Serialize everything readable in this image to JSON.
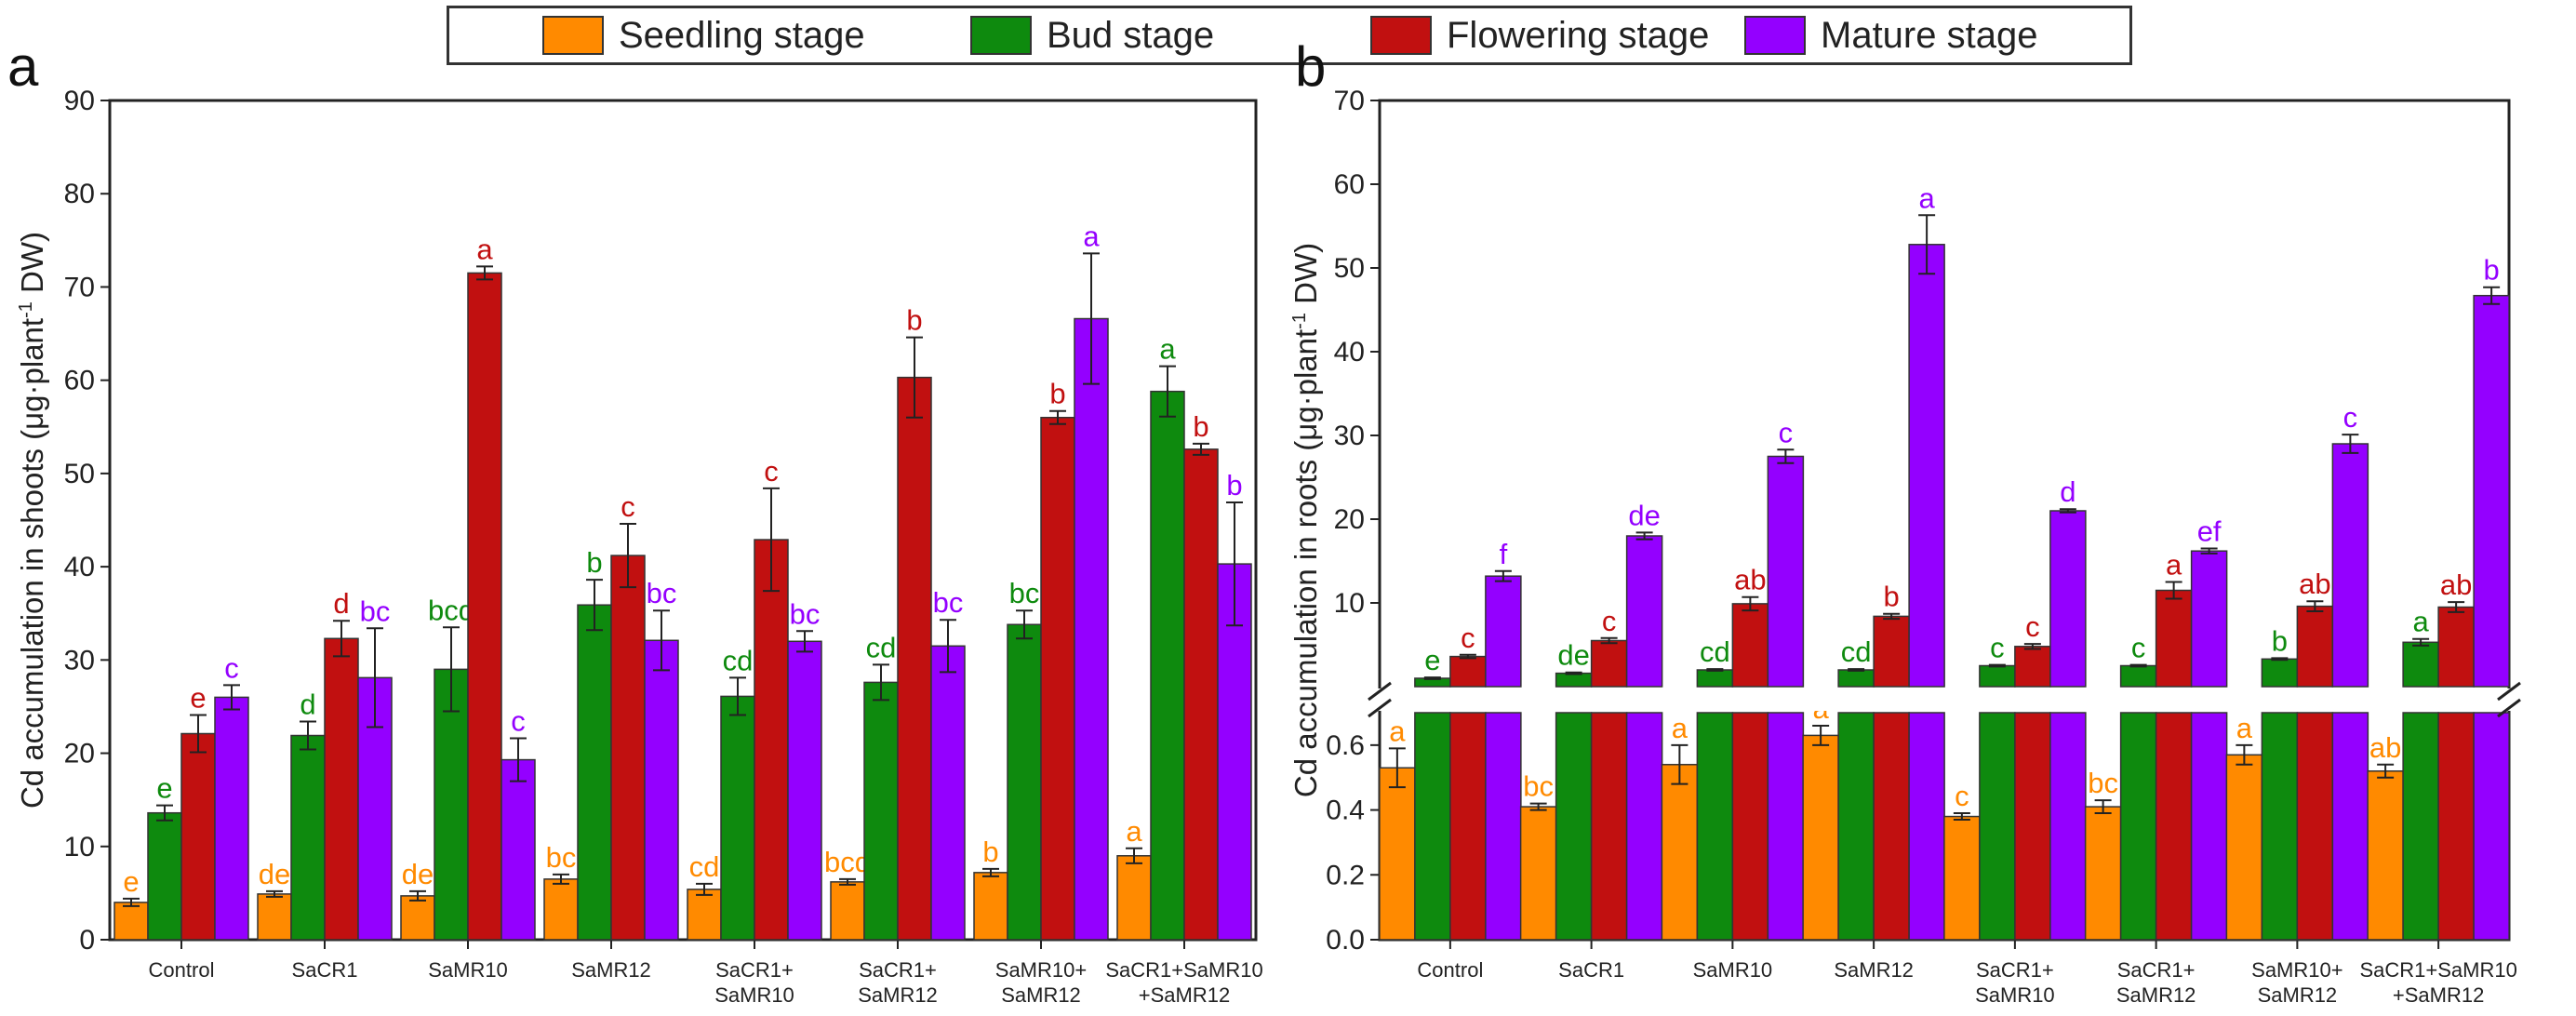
{
  "legend": {
    "items": [
      {
        "label": "Seedling stage",
        "color": "#ff8a00"
      },
      {
        "label": "Bud stage",
        "color": "#0e8a0e"
      },
      {
        "label": "Flowering stage",
        "color": "#c11010"
      },
      {
        "label": "Mature stage",
        "color": "#9400ff"
      }
    ]
  },
  "chart_data": [
    {
      "type": "bar",
      "panel": "a",
      "ylabel_main": "Cd accumulation in shoots (μg·plant",
      "ylabel_sup": "-1",
      "ylabel_tail": " DW)",
      "ylim": [
        0,
        90
      ],
      "yticks": [
        0,
        10,
        20,
        30,
        40,
        50,
        60,
        70,
        80,
        90
      ],
      "categories": [
        [
          "Control"
        ],
        [
          "SaCR1"
        ],
        [
          "SaMR10"
        ],
        [
          "SaMR12"
        ],
        [
          "SaCR1+",
          "SaMR10"
        ],
        [
          "SaCR1+",
          "SaMR12"
        ],
        [
          "SaMR10+",
          "SaMR12"
        ],
        [
          "SaCR1+SaMR10",
          "+SaMR12"
        ]
      ],
      "series": [
        {
          "name": "Seedling stage",
          "values": [
            4.0,
            4.9,
            4.7,
            6.5,
            5.4,
            6.2,
            7.2,
            9.0
          ],
          "errors": [
            0.4,
            0.3,
            0.5,
            0.5,
            0.6,
            0.3,
            0.4,
            0.8
          ],
          "letters": [
            "e",
            "de",
            "de",
            "bc",
            "cd",
            "bcd",
            "b",
            "a"
          ]
        },
        {
          "name": "Bud stage",
          "values": [
            13.6,
            21.9,
            29.0,
            35.9,
            26.1,
            27.6,
            33.8,
            58.8
          ],
          "errors": [
            0.8,
            1.5,
            4.5,
            2.7,
            2.0,
            1.9,
            1.5,
            2.7
          ],
          "letters": [
            "e",
            "d",
            "bcd",
            "b",
            "cd",
            "cd",
            "bc",
            "a"
          ]
        },
        {
          "name": "Flowering stage",
          "values": [
            22.1,
            32.3,
            71.5,
            41.2,
            42.9,
            60.3,
            56.0,
            52.6
          ],
          "errors": [
            2.0,
            1.9,
            0.7,
            3.4,
            5.5,
            4.3,
            0.7,
            0.6
          ],
          "letters": [
            "e",
            "d",
            "a",
            "c",
            "c",
            "b",
            "b",
            "b"
          ]
        },
        {
          "name": "Mature stage",
          "values": [
            26.0,
            28.1,
            19.3,
            32.1,
            32.0,
            31.5,
            66.6,
            40.3
          ],
          "errors": [
            1.3,
            5.3,
            2.3,
            3.2,
            1.1,
            2.8,
            7.0,
            6.6
          ],
          "letters": [
            "c",
            "bc",
            "c",
            "bc",
            "bc",
            "bc",
            "a",
            "b"
          ]
        }
      ]
    },
    {
      "type": "bar",
      "panel": "b",
      "ylabel_main": "Cd accumulation in roots (μg·plant",
      "ylabel_sup": "-1",
      "ylabel_tail": " DW)",
      "broken_axis": true,
      "ylim_lower": [
        0,
        0.7
      ],
      "ylim_upper": [
        0,
        70
      ],
      "yticks_lower": [
        "0.0",
        "0.2",
        "0.4",
        "0.6"
      ],
      "yticks_upper": [
        10,
        20,
        30,
        40,
        50,
        60,
        70
      ],
      "categories": [
        [
          "Control"
        ],
        [
          "SaCR1"
        ],
        [
          "SaMR10"
        ],
        [
          "SaMR12"
        ],
        [
          "SaCR1+",
          "SaMR10"
        ],
        [
          "SaCR1+",
          "SaMR12"
        ],
        [
          "SaMR10+",
          "SaMR12"
        ],
        [
          "SaCR1+SaMR10",
          "+SaMR12"
        ]
      ],
      "series": [
        {
          "name": "Seedling stage",
          "values": [
            0.53,
            0.41,
            0.54,
            0.63,
            0.38,
            0.41,
            0.57,
            0.52
          ],
          "errors": [
            0.06,
            0.01,
            0.06,
            0.03,
            0.01,
            0.02,
            0.03,
            0.02
          ],
          "letters": [
            "a",
            "bc",
            "a",
            "a",
            "c",
            "bc",
            "a",
            "ab"
          ]
        },
        {
          "name": "Bud stage",
          "values": [
            1.0,
            1.6,
            2.0,
            2.0,
            2.5,
            2.5,
            3.3,
            5.3
          ],
          "errors": [
            0.1,
            0.1,
            0.1,
            0.1,
            0.1,
            0.1,
            0.1,
            0.4
          ],
          "letters": [
            "e",
            "de",
            "cd",
            "cd",
            "c",
            "c",
            "b",
            "a"
          ]
        },
        {
          "name": "Flowering stage",
          "values": [
            3.6,
            5.5,
            9.9,
            8.4,
            4.8,
            11.5,
            9.6,
            9.5
          ],
          "errors": [
            0.2,
            0.3,
            0.8,
            0.3,
            0.3,
            1.0,
            0.6,
            0.6
          ],
          "letters": [
            "c",
            "c",
            "ab",
            "b",
            "c",
            "a",
            "ab",
            "ab"
          ]
        },
        {
          "name": "Mature stage",
          "values": [
            13.2,
            18.0,
            27.5,
            52.8,
            21.0,
            16.2,
            29.0,
            46.7
          ],
          "errors": [
            0.6,
            0.4,
            0.8,
            3.5,
            0.2,
            0.3,
            1.1,
            1.0
          ],
          "letters": [
            "f",
            "de",
            "c",
            "a",
            "d",
            "ef",
            "c",
            "b"
          ]
        }
      ]
    }
  ]
}
